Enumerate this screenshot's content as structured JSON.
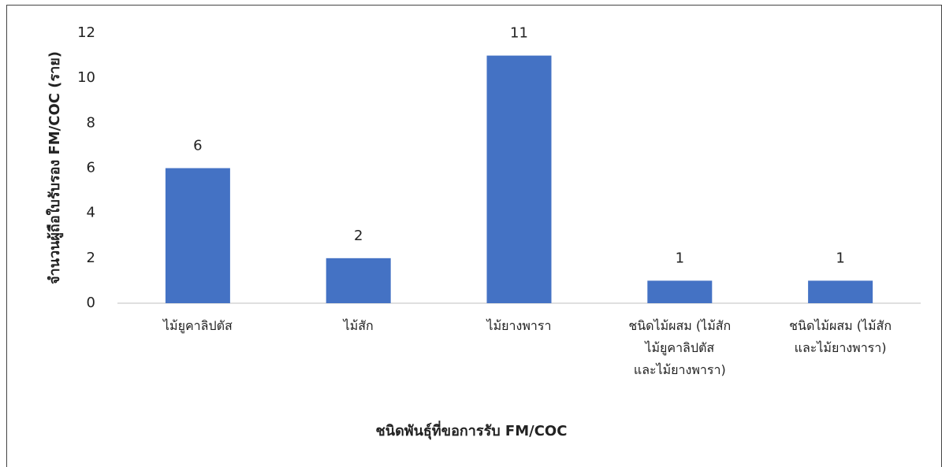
{
  "chart_data": {
    "type": "bar",
    "categories": [
      "ไม้ยูคาลิปตัส",
      "ไม้สัก",
      "ไม้ยางพารา",
      "ชนิดไม้ผสม (ไม้สัก\nไม้ยูคาลิปตัส\nและไม้ยางพารา)",
      "ชนิดไม้ผสม (ไม้สัก\nและไม้ยางพารา)"
    ],
    "values": [
      6,
      2,
      11,
      1,
      1
    ],
    "color": "#4472c4",
    "ylim": [
      0,
      12
    ],
    "yticks": [
      0,
      2,
      4,
      6,
      8,
      10,
      12
    ],
    "grid": false,
    "x_label": "ชนิดพันธุ์ที่ขอการรับ FM/COC",
    "y_label": "จำนวนผู้ถือใบรับรอง FM/COC (ราย)"
  }
}
